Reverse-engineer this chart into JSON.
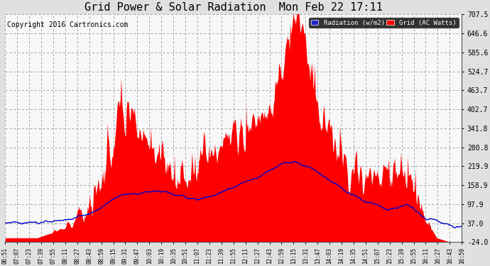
{
  "title": "Grid Power & Solar Radiation  Mon Feb 22 17:11",
  "copyright": "Copyright 2016 Cartronics.com",
  "legend_radiation": "Radiation (w/m2)",
  "legend_grid": "Grid (AC Watts)",
  "ylabel_right_ticks": [
    707.5,
    646.6,
    585.6,
    524.7,
    463.7,
    402.7,
    341.8,
    280.8,
    219.9,
    158.9,
    97.9,
    37.0,
    -24.0
  ],
  "ylim": [
    -24.0,
    707.5
  ],
  "background_color": "#f8f8f8",
  "fill_color": "#ff0000",
  "line_color": "#0000cc",
  "title_fontsize": 11,
  "copyright_fontsize": 7,
  "x_tick_labels": [
    "06:51",
    "07:07",
    "07:23",
    "07:39",
    "07:55",
    "08:11",
    "08:27",
    "08:43",
    "08:59",
    "09:15",
    "09:31",
    "09:47",
    "10:03",
    "10:19",
    "10:35",
    "10:51",
    "11:07",
    "11:23",
    "11:39",
    "11:55",
    "12:11",
    "12:27",
    "12:43",
    "12:59",
    "13:15",
    "13:31",
    "13:47",
    "14:03",
    "14:19",
    "14:35",
    "14:51",
    "15:07",
    "15:23",
    "15:39",
    "15:55",
    "16:11",
    "16:27",
    "16:43",
    "16:59"
  ]
}
